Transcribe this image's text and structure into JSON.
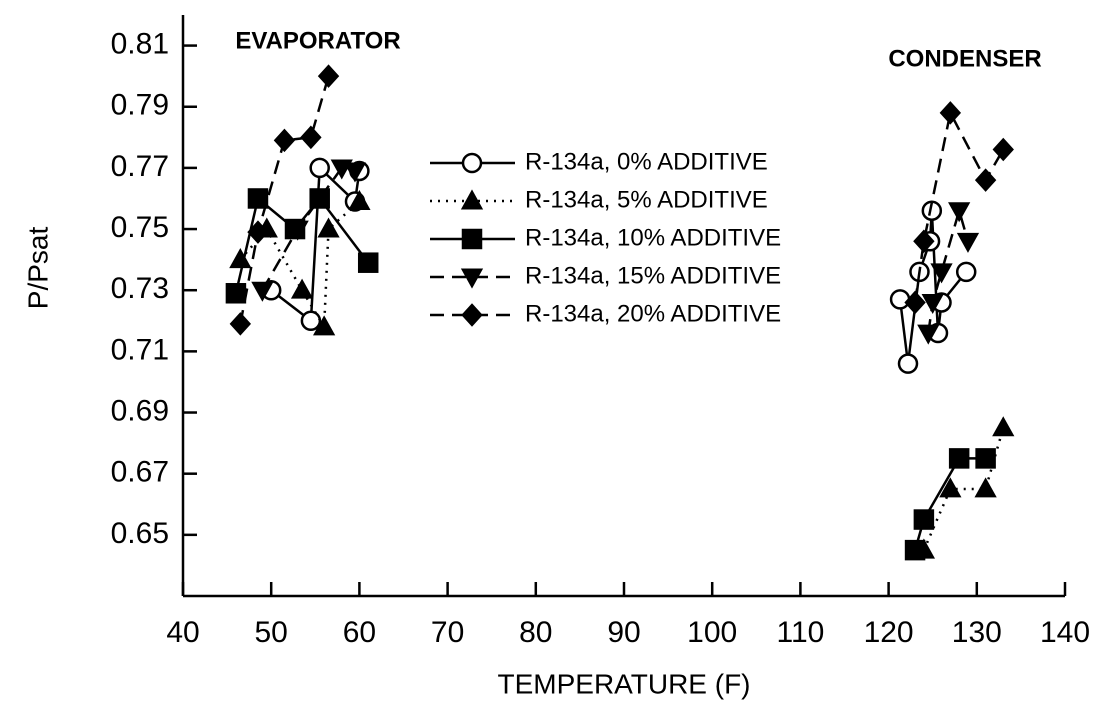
{
  "chart_data": {
    "type": "line",
    "xlabel": "TEMPERATURE (F)",
    "ylabel": "P/Psat",
    "annotations": [
      "EVAPORATOR",
      "CONDENSER"
    ],
    "xlim": [
      40,
      140
    ],
    "xticks": [
      40,
      50,
      60,
      70,
      80,
      90,
      100,
      110,
      120,
      130,
      140
    ],
    "ylim": [
      0.63,
      0.82
    ],
    "yticks": [
      0.65,
      0.67,
      0.69,
      0.71,
      0.73,
      0.75,
      0.77,
      0.79,
      0.81
    ],
    "legend": "center",
    "series": [
      {
        "name": "R-134a, 0% ADDITIVE",
        "color": "#000000",
        "marker": "circle",
        "dash": "solid",
        "x": [
          50,
          54.5,
          55.5,
          59.5,
          60,
          null,
          121.3,
          122.2,
          123.5,
          124.7,
          124.9,
          125.6,
          126,
          128.8
        ],
        "values": [
          0.73,
          0.72,
          0.77,
          0.759,
          0.769,
          null,
          0.727,
          0.706,
          0.736,
          0.746,
          0.756,
          0.716,
          0.726,
          0.736
        ]
      },
      {
        "name": "R-134a, 5% ADDITIVE",
        "color": "#000000",
        "marker": "triangle",
        "dash": "dotted",
        "x": [
          46.5,
          49.5,
          53.5,
          56,
          56.5,
          60,
          null,
          124,
          127,
          131,
          133
        ],
        "values": [
          0.74,
          0.75,
          0.73,
          0.718,
          0.75,
          0.759,
          null,
          0.645,
          0.665,
          0.665,
          0.685
        ]
      },
      {
        "name": "R-134a, 10% ADDITIVE",
        "color": "#000000",
        "marker": "square",
        "dash": "solid",
        "x": [
          46,
          48.5,
          52.7,
          55.5,
          61,
          null,
          123,
          124,
          128,
          131
        ],
        "values": [
          0.729,
          0.76,
          0.75,
          0.76,
          0.739,
          null,
          0.645,
          0.655,
          0.675,
          0.675
        ]
      },
      {
        "name": "R-134a, 15% ADDITIVE",
        "color": "#000000",
        "marker": "triangle-down",
        "dash": "dashed",
        "x": [
          49,
          53,
          58,
          59.5,
          null,
          124.5,
          125,
          126,
          128,
          129
        ],
        "values": [
          0.73,
          0.75,
          0.77,
          0.769,
          null,
          0.716,
          0.726,
          0.736,
          0.756,
          0.746
        ]
      },
      {
        "name": "R-134a, 20% ADDITIVE",
        "color": "#000000",
        "marker": "diamond",
        "dash": "dashed",
        "x": [
          46.5,
          48.5,
          51.5,
          54.5,
          56.5,
          null,
          123,
          124,
          127,
          131,
          133
        ],
        "values": [
          0.719,
          0.749,
          0.779,
          0.78,
          0.8,
          null,
          0.726,
          0.746,
          0.788,
          0.766,
          0.776
        ]
      }
    ]
  }
}
